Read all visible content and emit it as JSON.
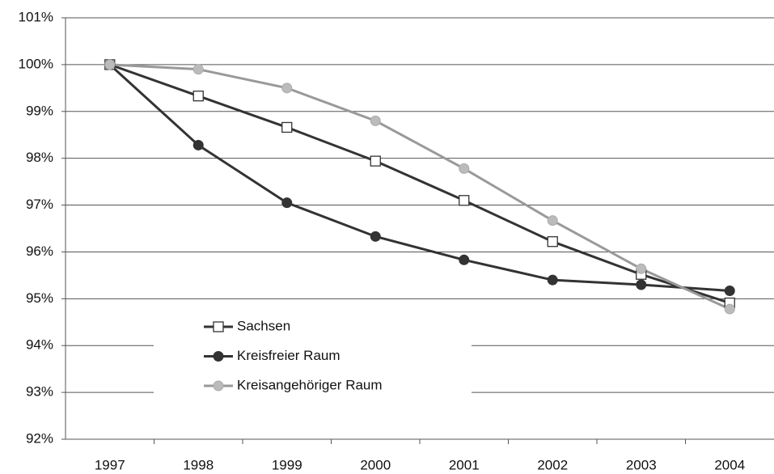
{
  "chart_data": {
    "type": "line",
    "categories": [
      "1997",
      "1998",
      "1999",
      "2000",
      "2001",
      "2002",
      "2003",
      "2004"
    ],
    "series": [
      {
        "name": "Sachsen",
        "color": "#333333",
        "marker": "square",
        "marker_fill": "#ffffff",
        "values": [
          100,
          99.33,
          98.66,
          97.94,
          97.1,
          96.22,
          95.52,
          94.91
        ]
      },
      {
        "name": "Kreisfreier Raum",
        "color": "#333333",
        "marker": "circle",
        "marker_fill": "#333333",
        "values": [
          100,
          98.28,
          97.05,
          96.33,
          95.83,
          95.4,
          95.3,
          95.17
        ]
      },
      {
        "name": "Kreisangehöriger Raum",
        "color": "#999999",
        "marker": "circle",
        "marker_fill": "#bbbbbb",
        "values": [
          100,
          99.9,
          99.5,
          98.8,
          97.78,
          96.67,
          95.64,
          94.78
        ]
      }
    ],
    "ylim": [
      92,
      101
    ],
    "yticks": [
      {
        "value": 92,
        "label": "92%"
      },
      {
        "value": 93,
        "label": "93%"
      },
      {
        "value": 94,
        "label": "94%"
      },
      {
        "value": 95,
        "label": "95%"
      },
      {
        "value": 96,
        "label": "96%"
      },
      {
        "value": 97,
        "label": "97%"
      },
      {
        "value": 98,
        "label": "98%"
      },
      {
        "value": 99,
        "label": "99%"
      },
      {
        "value": 100,
        "label": "100%"
      },
      {
        "value": 101,
        "label": "101%"
      }
    ],
    "grid": true
  }
}
